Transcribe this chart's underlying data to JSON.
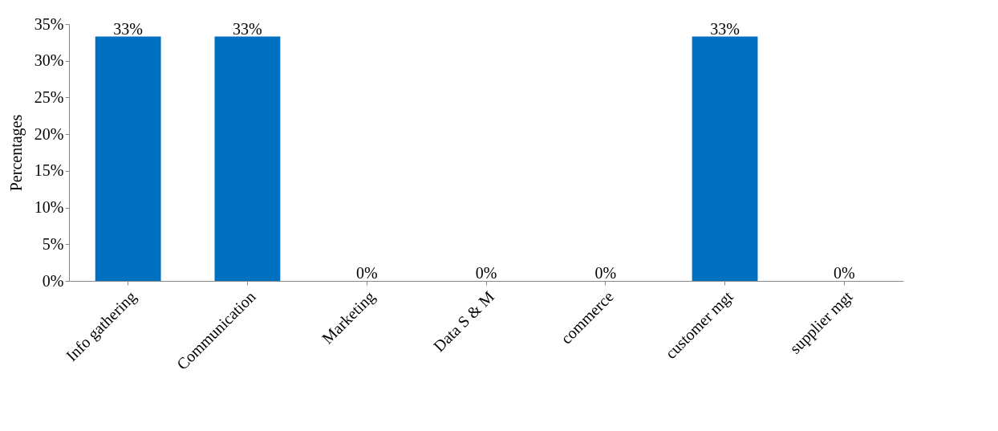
{
  "chart_data": {
    "type": "bar",
    "ylabel": "Percentages",
    "categories": [
      "Info gathering",
      "Communication",
      "Marketing",
      "Data S & M",
      "commerce",
      "customer mgt",
      "supplier mgt"
    ],
    "values": [
      33.3,
      33.3,
      0,
      0,
      0,
      33.3,
      0
    ],
    "value_labels": [
      "33%",
      "33%",
      "0%",
      "0%",
      "0%",
      "33%",
      "0%"
    ],
    "color": "#0070c0",
    "ylim": [
      0,
      35
    ],
    "yticks": [
      {
        "value": 0,
        "label": "0%"
      },
      {
        "value": 5,
        "label": "5%"
      },
      {
        "value": 10,
        "label": "10%"
      },
      {
        "value": 15,
        "label": "15%"
      },
      {
        "value": 20,
        "label": "20%"
      },
      {
        "value": 25,
        "label": "25%"
      },
      {
        "value": 30,
        "label": "30%"
      },
      {
        "value": 35,
        "label": "35%"
      }
    ],
    "grid": false
  }
}
